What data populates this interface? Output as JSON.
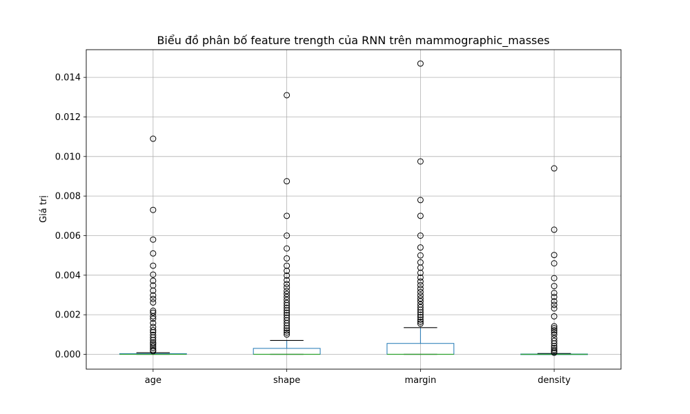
{
  "chart_data": {
    "type": "box",
    "title": "Biểu đồ phân bố feature trength của RNN trên mammographic_masses",
    "xlabel": "",
    "ylabel": "Giá trị",
    "categories": [
      "age",
      "shape",
      "margin",
      "density"
    ],
    "ylim": [
      -0.00075,
      0.0154
    ],
    "yticks": [
      0.0,
      0.002,
      0.004,
      0.006,
      0.008,
      0.01,
      0.012,
      0.014
    ],
    "ytick_labels": [
      "0.000",
      "0.002",
      "0.004",
      "0.006",
      "0.008",
      "0.010",
      "0.012",
      "0.014"
    ],
    "grid": true,
    "colors": {
      "box": "#1f77b4",
      "median": "#2ca02c",
      "whisker": "#000000",
      "flier": "#000000",
      "grid": "#b0b0b0"
    },
    "boxes": [
      {
        "label": "age",
        "whislo": 0.0,
        "q1": 0.0,
        "med": 0.0,
        "q3": 3e-05,
        "whishi": 8e-05,
        "fliers": [
          0.0109,
          0.0073,
          0.0058,
          0.0051,
          0.00448,
          0.00403,
          0.00372,
          0.00348,
          0.00322,
          0.00298,
          0.0028,
          0.00262,
          0.0022,
          0.0021,
          0.00192,
          0.0018,
          0.00158,
          0.00138,
          0.00122,
          0.00112,
          0.00098,
          0.00085,
          0.00072,
          0.0006,
          0.00052,
          0.00042,
          0.00032,
          0.00022,
          0.00016
        ]
      },
      {
        "label": "shape",
        "whislo": 0.0,
        "q1": 0.0,
        "med": 0.0,
        "q3": 0.0003,
        "whishi": 0.0007,
        "fliers": [
          0.0131,
          0.00875,
          0.007,
          0.006,
          0.00535,
          0.00485,
          0.00448,
          0.00422,
          0.00398,
          0.00375,
          0.00355,
          0.00338,
          0.0032,
          0.00305,
          0.0029,
          0.00275,
          0.0026,
          0.00248,
          0.00235,
          0.00222,
          0.0021,
          0.00198,
          0.00185,
          0.00172,
          0.00158,
          0.00145,
          0.00132,
          0.0012,
          0.0011,
          0.001
        ]
      },
      {
        "label": "margin",
        "whislo": 0.0,
        "q1": 0.0,
        "med": 0.0,
        "q3": 0.00055,
        "whishi": 0.00135,
        "fliers": [
          0.0147,
          0.00975,
          0.0078,
          0.007,
          0.006,
          0.0054,
          0.005,
          0.00465,
          0.00438,
          0.00412,
          0.00388,
          0.00368,
          0.0035,
          0.00332,
          0.00315,
          0.00298,
          0.00282,
          0.00268,
          0.00252,
          0.00238,
          0.00225,
          0.00212,
          0.002,
          0.00188,
          0.00175,
          0.00165,
          0.00155
        ]
      },
      {
        "label": "density",
        "whislo": 0.0,
        "q1": 0.0,
        "med": 0.0,
        "q3": 1.5e-05,
        "whishi": 4e-05,
        "fliers": [
          0.0094,
          0.0063,
          0.00502,
          0.0046,
          0.00385,
          0.00345,
          0.0031,
          0.0029,
          0.00268,
          0.0025,
          0.00232,
          0.00192,
          0.00142,
          0.00132,
          0.00122,
          0.00112,
          0.001,
          0.00082,
          0.00068,
          0.00055,
          0.00042,
          0.00032,
          0.00022,
          0.00014,
          8e-05
        ]
      }
    ]
  }
}
